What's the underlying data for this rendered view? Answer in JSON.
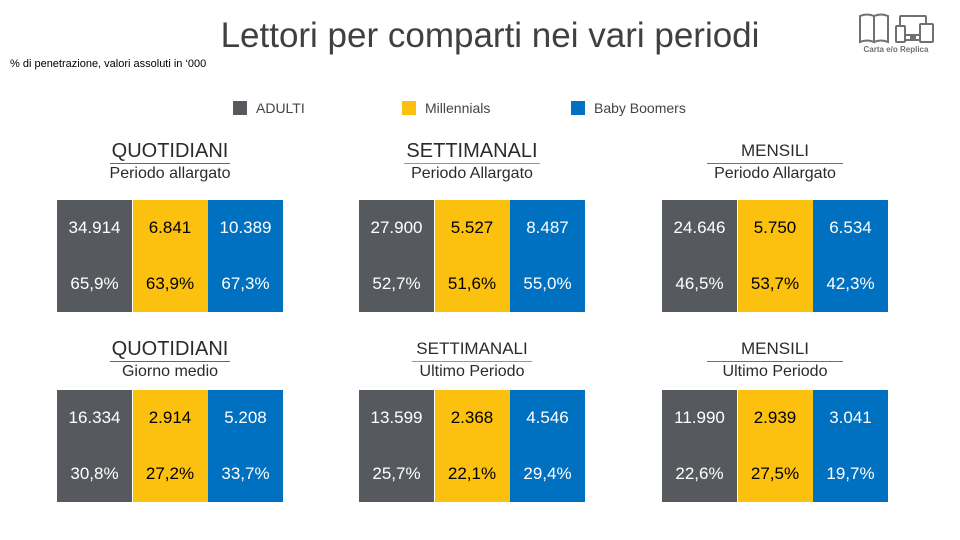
{
  "title": "Lettori per comparti nei vari periodi",
  "subtitle": "% di penetrazione,  valori  assoluti in ‘000",
  "logo": {
    "caption": "Carta e/o Replica",
    "icon": "book-and-devices-icon"
  },
  "legend": [
    {
      "label": "ADULTI",
      "color": "#565a5f"
    },
    {
      "label": "Millennials",
      "color": "#fcc10f"
    },
    {
      "label": "Baby Boomers",
      "color": "#0070c0"
    }
  ],
  "colors": {
    "adulti": "#565a5f",
    "millennials": "#fcc10f",
    "baby_boomers": "#0070c0",
    "underline_blue": "#2e75b6",
    "underline_orange": "#ed7d31",
    "underline_green": "#00b050"
  },
  "chart_data": {
    "type": "table",
    "columns": [
      "ADULTI",
      "Millennials",
      "Baby Boomers"
    ],
    "blocks": [
      {
        "name": "QUOTIDIANI",
        "period": "Periodo allargato",
        "underline": "#2e75b6",
        "values": [
          "34.914",
          "6.841",
          "10.389"
        ],
        "percents": [
          "65,9%",
          "63,9%",
          "67,3%"
        ]
      },
      {
        "name": "SETTIMANALI",
        "period": "Periodo Allargato",
        "underline": "#ed7d31",
        "values": [
          "27.900",
          "5.527",
          "8.487"
        ],
        "percents": [
          "52,7%",
          "51,6%",
          "55,0%"
        ]
      },
      {
        "name": "MENSILI",
        "period": "Periodo Allargato",
        "underline": "#00b050",
        "values": [
          "24.646",
          "5.750",
          "6.534"
        ],
        "percents": [
          "46,5%",
          "53,7%",
          "42,3%"
        ]
      },
      {
        "name": "QUOTIDIANI",
        "period": "Giorno medio",
        "underline": "#2e75b6",
        "values": [
          "16.334",
          "2.914",
          "5.208"
        ],
        "percents": [
          "30,8%",
          "27,2%",
          "33,7%"
        ]
      },
      {
        "name": "SETTIMANALI",
        "period": "Ultimo Periodo",
        "underline": "#ed7d31",
        "values": [
          "13.599",
          "2.368",
          "4.546"
        ],
        "percents": [
          "25,7%",
          "22,1%",
          "29,4%"
        ]
      },
      {
        "name": "MENSILI",
        "period": "Ultimo Periodo",
        "underline": "#00b050",
        "values": [
          "11.990",
          "2.939",
          "3.041"
        ],
        "percents": [
          "22,6%",
          "27,5%",
          "19,7%"
        ]
      }
    ]
  }
}
